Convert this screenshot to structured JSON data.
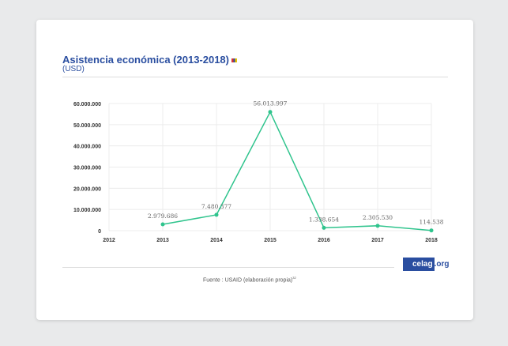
{
  "chart_data": {
    "type": "line",
    "title": "Asistencia económica (2013-2018)",
    "subtitle": "(USD)",
    "x": [
      "2012",
      "2013",
      "2014",
      "2015",
      "2016",
      "2017",
      "2018"
    ],
    "series": [
      {
        "name": "Asistencia económica",
        "x": [
          "2013",
          "2014",
          "2015",
          "2016",
          "2017",
          "2018"
        ],
        "values": [
          2979686,
          7480377,
          56013997,
          1338654,
          2305530,
          114538
        ],
        "labels": [
          "2.979.686",
          "7.480.377",
          "56.013.997",
          "1.338.654",
          "2.305.530",
          "114.538"
        ]
      }
    ],
    "yticks": [
      0,
      10000000,
      20000000,
      30000000,
      40000000,
      50000000,
      60000000
    ],
    "ytick_labels": [
      "0",
      "10.000.000",
      "20.000.000",
      "30.000.000",
      "40.000.000",
      "50.000.000",
      "60.000.000"
    ],
    "ylim": [
      0,
      60000000
    ],
    "grid": true,
    "color": "#2fc48d"
  },
  "source": "Fuente : USAID (elaboración propia)",
  "source_ref": "32",
  "logo": {
    "main": "celag",
    "suffix": ".org"
  }
}
